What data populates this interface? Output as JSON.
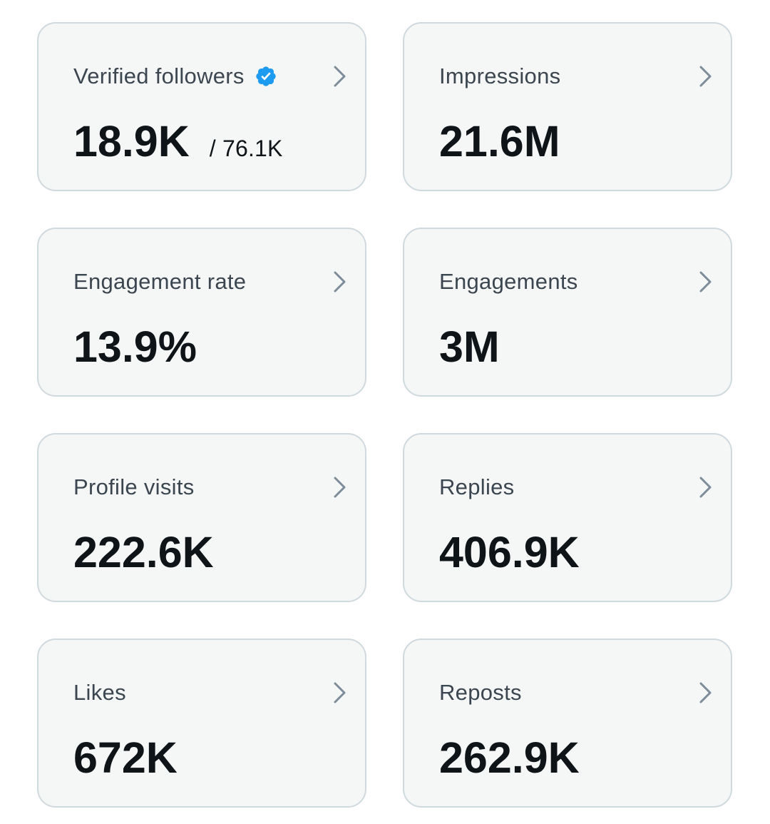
{
  "cards": [
    {
      "label": "Verified followers",
      "value": "18.9K",
      "sub": "/ 76.1K",
      "badge": "verified-badge-icon"
    },
    {
      "label": "Impressions",
      "value": "21.6M"
    },
    {
      "label": "Engagement rate",
      "value": "13.9%"
    },
    {
      "label": "Engagements",
      "value": "3M"
    },
    {
      "label": "Profile visits",
      "value": "222.6K"
    },
    {
      "label": "Replies",
      "value": "406.9K"
    },
    {
      "label": "Likes",
      "value": "672K"
    },
    {
      "label": "Reposts",
      "value": "262.9K"
    }
  ],
  "colors": {
    "card_background": "#f5f7f7",
    "card_border": "#cfd9de",
    "label_text": "#3c4650",
    "value_text": "#0f1419",
    "chevron": "#7d8c99",
    "verified_badge": "#1d9bf0"
  }
}
